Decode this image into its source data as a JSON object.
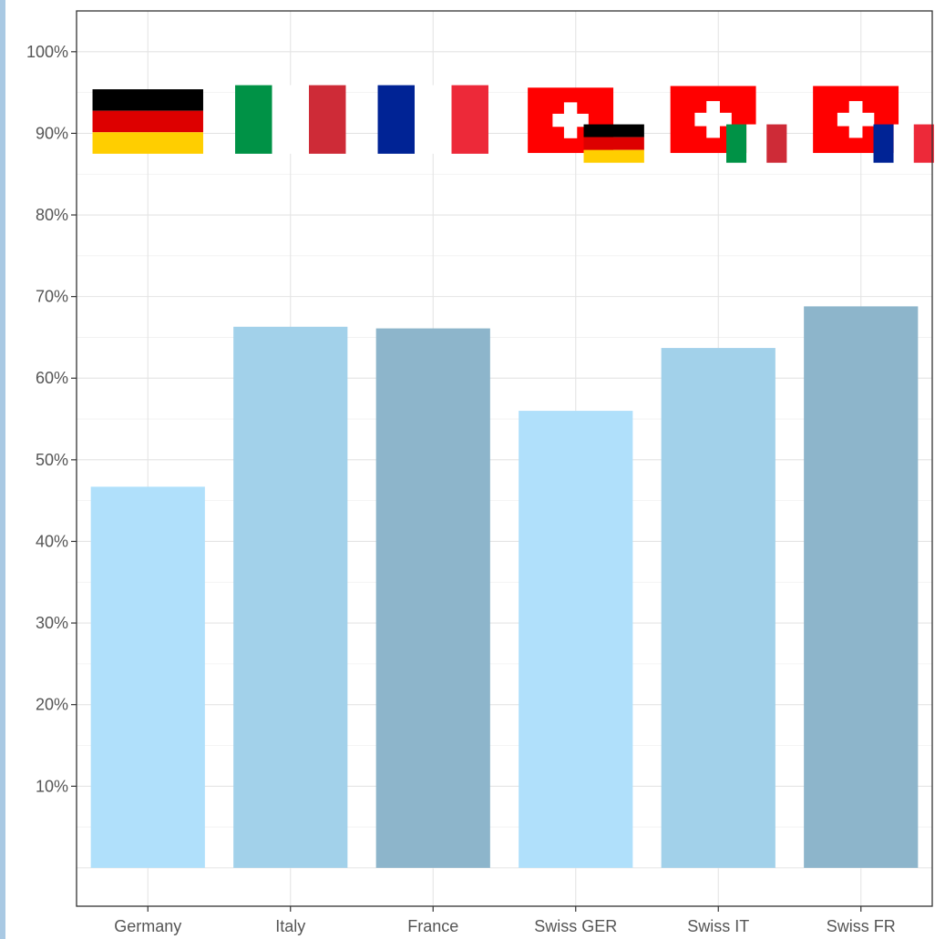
{
  "chart_data": {
    "type": "bar",
    "categories": [
      "Germany",
      "Italy",
      "France",
      "Swiss GER",
      "Swiss IT",
      "Swiss FR"
    ],
    "values": [
      46.7,
      66.3,
      66.1,
      56.0,
      63.7,
      68.8
    ],
    "ylim": [
      -4.7,
      105
    ],
    "yticks": [
      10,
      20,
      30,
      40,
      50,
      60,
      70,
      80,
      90,
      100
    ],
    "ytick_labels": [
      "10%",
      "20%",
      "30%",
      "40%",
      "50%",
      "60%",
      "70%",
      "80%",
      "90%",
      "100%"
    ],
    "grid": true,
    "bar_colors": [
      "#b0e0fb",
      "#a2d1ea",
      "#8db5cb",
      "#b0e0fb",
      "#a2d1ea",
      "#8db5cb"
    ],
    "flag_icons": [
      "germany-flag-icon",
      "italy-flag-icon",
      "france-flag-icon",
      "switzerland-germany-flag-icon",
      "switzerland-italy-flag-icon",
      "switzerland-france-flag-icon"
    ],
    "title": "",
    "xlabel": "",
    "ylabel": ""
  }
}
